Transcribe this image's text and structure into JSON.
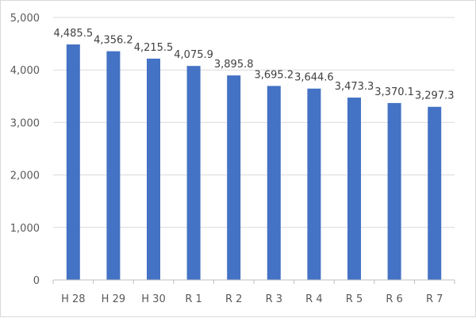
{
  "chart_data": {
    "type": "bar",
    "categories": [
      "H28",
      "H29",
      "H30",
      "R1",
      "R2",
      "R3",
      "R4",
      "R5",
      "R6",
      "R7"
    ],
    "values": [
      4485.5,
      4356.2,
      4215.5,
      4075.9,
      3895.8,
      3695.2,
      3644.6,
      3473.3,
      3370.1,
      3297.3
    ],
    "value_labels": [
      "4,485.5",
      "4,356.2",
      "4,215.5",
      "4,075.9",
      "3,895.8",
      "3,695.2",
      "3,644.6",
      "3,473.3",
      "3,370.1",
      "3,297.3"
    ],
    "category_labels": [
      "H 28",
      "H 29",
      "H 30",
      "R 1",
      "R 2",
      "R 3",
      "R 4",
      "R 5",
      "R 6",
      "R 7"
    ],
    "y_ticks": [
      0,
      1000,
      2000,
      3000,
      4000,
      5000
    ],
    "y_tick_labels": [
      "0",
      "1,000",
      "2,000",
      "3,000",
      "4,000",
      "5,000"
    ],
    "ylim": [
      0,
      5000
    ],
    "title": "",
    "xlabel": "",
    "ylabel": "",
    "grid": true,
    "legend": "none",
    "bar_color": "#4472c4"
  }
}
